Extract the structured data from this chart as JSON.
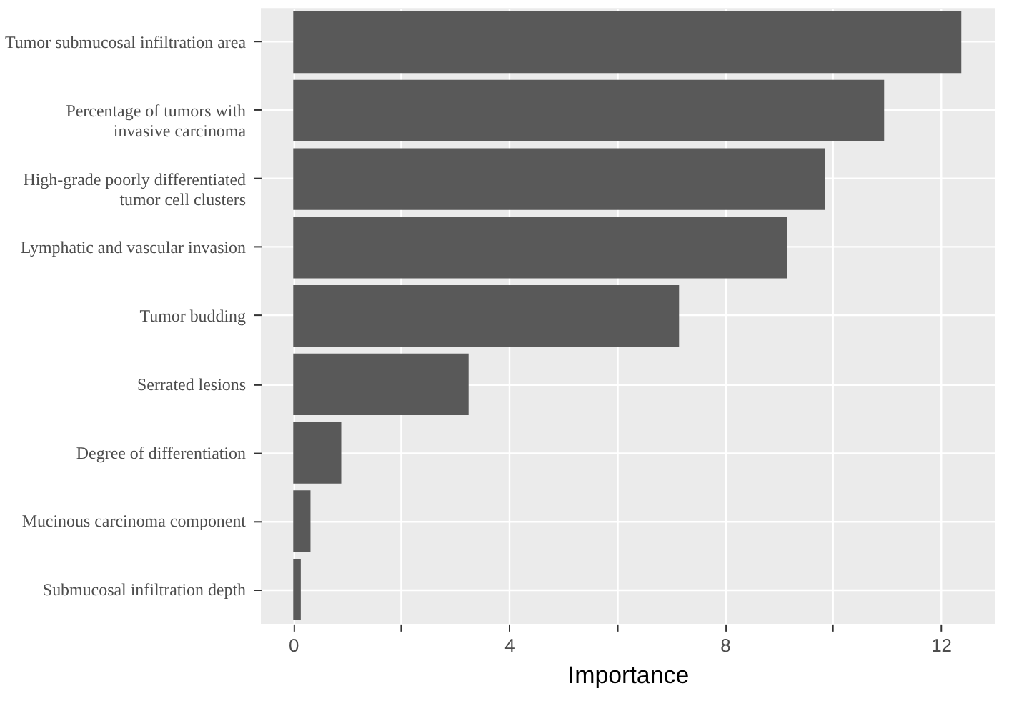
{
  "chart_data": {
    "type": "bar",
    "orientation": "horizontal",
    "xlabel": "Importance",
    "categories": [
      "Tumor submucosal infiltration area",
      "Percentage of tumors with\ninvasive carcinoma",
      "High-grade poorly differentiated\ntumor cell clusters",
      "Lymphatic and vascular invasion",
      "Tumor budding",
      "Serrated lesions",
      "Degree of differentiation",
      "Mucinous carcinoma component",
      "Submucosal infiltration depth"
    ],
    "values": [
      12.38,
      10.95,
      9.85,
      9.15,
      7.15,
      3.25,
      0.89,
      0.32,
      0.14
    ],
    "color": "#595959",
    "xlim": [
      -0.6,
      13.0
    ],
    "xticks": [
      0,
      {
        "value": 2,
        "label": null
      },
      4,
      {
        "value": 6,
        "label": null
      },
      8,
      {
        "value": 10,
        "label": null
      },
      12
    ],
    "grid": true
  }
}
